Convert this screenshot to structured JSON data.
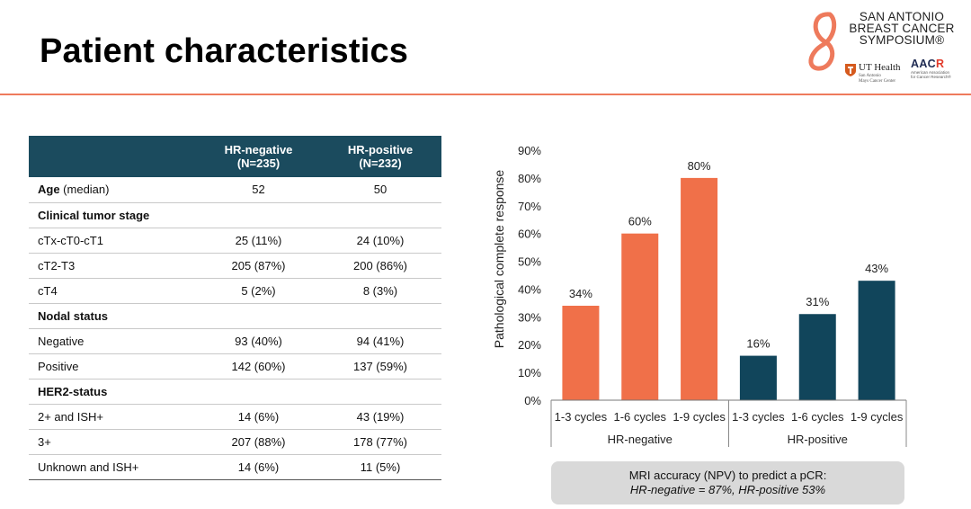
{
  "slide": {
    "title": "Patient characteristics"
  },
  "logo": {
    "sabcs_lines": [
      "SAN ANTONIO",
      "BREAST CANCER",
      "SYMPOSIUM®"
    ],
    "ut_name": "UT Health",
    "ut_sub_lines": [
      "San Antonio",
      "Mays Cancer Center"
    ],
    "aacr_name_a": "AAC",
    "aacr_name_r": "R",
    "aacr_sub_lines": [
      "American Association",
      "for Cancer Research®"
    ],
    "colors": {
      "accent": "#ee7a5c",
      "aacr_navy": "#1e2a52",
      "aacr_red": "#e23b2b",
      "ut_orange": "#d55a1e"
    }
  },
  "table": {
    "header": {
      "col1_line1": "HR-negative",
      "col1_line2": "(N=235)",
      "col2_line1": "HR-positive",
      "col2_line2": "(N=232)"
    },
    "age": {
      "label_bold": "Age",
      "label_rest": " (median)",
      "neg": "52",
      "pos": "50"
    },
    "rows": [
      {
        "label": "Clinical tumor stage",
        "neg": "",
        "pos": "",
        "section": true
      },
      {
        "label": "cTx-cT0-cT1",
        "neg": "25 (11%)",
        "pos": "24 (10%)"
      },
      {
        "label": "cT2-T3",
        "neg": "205 (87%)",
        "pos": "200 (86%)"
      },
      {
        "label": "cT4",
        "neg": "5 (2%)",
        "pos": "8 (3%)"
      },
      {
        "label": "Nodal status",
        "neg": "",
        "pos": "",
        "section": true
      },
      {
        "label": "Negative",
        "neg": "93 (40%)",
        "pos": "94 (41%)"
      },
      {
        "label": "Positive",
        "neg": "142 (60%)",
        "pos": "137 (59%)"
      },
      {
        "label": "HER2-status",
        "neg": "",
        "pos": "",
        "section": true
      },
      {
        "label": "2+ and ISH+",
        "neg": "14 (6%)",
        "pos": "43 (19%)"
      },
      {
        "label": "3+",
        "neg": "207 (88%)",
        "pos": "178 (77%)"
      },
      {
        "label": "Unknown and ISH+",
        "neg": "14 (6%)",
        "pos": "11 (5%)"
      }
    ],
    "header_color": "#1b4b5e"
  },
  "chart_data": {
    "type": "bar",
    "ylabel": "Pathological complete response",
    "ylim": [
      0,
      90
    ],
    "yticks": [
      "0%",
      "10%",
      "20%",
      "30%",
      "40%",
      "50%",
      "60%",
      "70%",
      "80%",
      "90%"
    ],
    "grid": false,
    "groups": [
      {
        "name": "HR-negative",
        "color": "#f07049",
        "categories": [
          "1-3 cycles",
          "1-6 cycles",
          "1-9 cycles"
        ],
        "values": [
          34,
          60,
          80
        ],
        "labels": [
          "34%",
          "60%",
          "80%"
        ]
      },
      {
        "name": "HR-positive",
        "color": "#11455b",
        "categories": [
          "1-3 cycles",
          "1-6 cycles",
          "1-9 cycles"
        ],
        "values": [
          16,
          31,
          43
        ],
        "labels": [
          "16%",
          "31%",
          "43%"
        ]
      }
    ]
  },
  "footnote": {
    "line1": "MRI accuracy (NPV) to predict a pCR:",
    "line2": "HR-negative = 87%, HR-positive 53%"
  }
}
